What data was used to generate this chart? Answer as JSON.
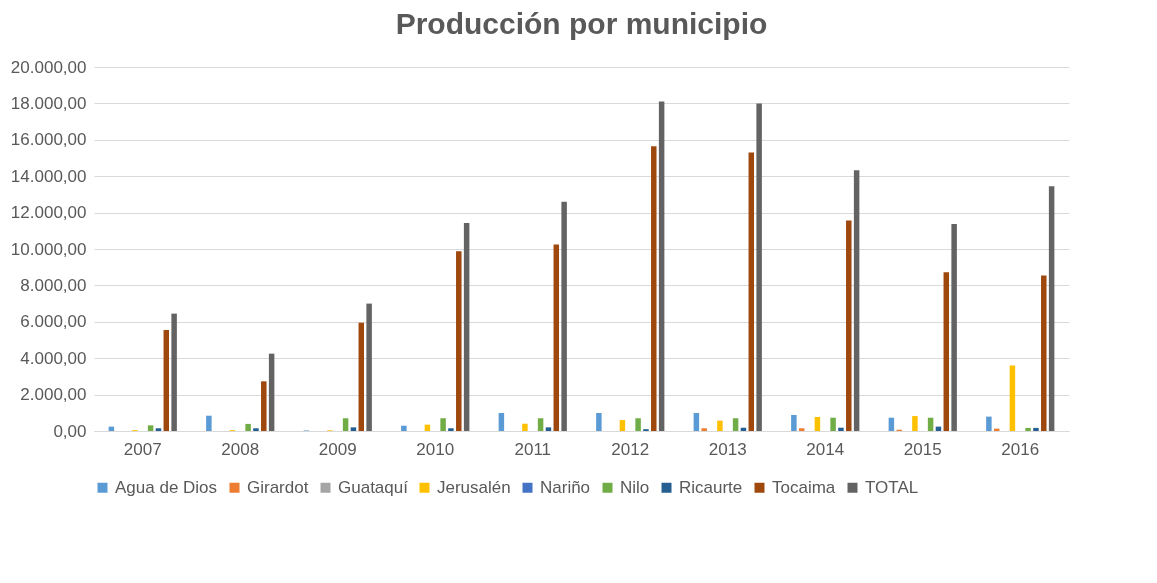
{
  "chart_data": {
    "type": "bar",
    "title": "Producción por municipio",
    "categories": [
      "2007",
      "2008",
      "2009",
      "2010",
      "2011",
      "2012",
      "2013",
      "2014",
      "2015",
      "2016"
    ],
    "series": [
      {
        "name": "Agua de Dios",
        "color": "#5b9bd5",
        "values": [
          240,
          840,
          30,
          290,
          990,
          990,
          990,
          880,
          730,
          790
        ]
      },
      {
        "name": "Girardot",
        "color": "#ed7d31",
        "values": [
          0,
          0,
          0,
          0,
          0,
          0,
          150,
          150,
          70,
          130
        ]
      },
      {
        "name": "Guataquí",
        "color": "#a5a5a5",
        "values": [
          null,
          null,
          null,
          0,
          0,
          0,
          0,
          0,
          0,
          0
        ]
      },
      {
        "name": "Jerusalén",
        "color": "#ffc000",
        "values": [
          50,
          50,
          40,
          350,
          400,
          600,
          570,
          770,
          820,
          3600
        ]
      },
      {
        "name": "Nariño",
        "color": "#4472c4",
        "values": [
          0,
          0,
          0,
          0,
          0,
          0,
          0,
          0,
          0,
          0
        ]
      },
      {
        "name": "Nilo",
        "color": "#70ad47",
        "values": [
          310,
          390,
          700,
          700,
          700,
          700,
          700,
          730,
          730,
          170
        ]
      },
      {
        "name": "Ricaurte",
        "color": "#255e91",
        "values": [
          150,
          150,
          200,
          150,
          200,
          100,
          180,
          180,
          240,
          170
        ]
      },
      {
        "name": "Tocaima",
        "color": "#9e480e",
        "values": [
          5550,
          2730,
          5950,
          9870,
          10250,
          15650,
          15300,
          11570,
          8720,
          8550
        ]
      },
      {
        "name": "TOTAL",
        "color": "#636363",
        "values": [
          6450,
          4250,
          7000,
          11430,
          12600,
          18100,
          18000,
          14330,
          11380,
          13450
        ]
      }
    ],
    "ylim": [
      0,
      20000
    ],
    "yticks": [
      {
        "value": 0,
        "label": "0,00"
      },
      {
        "value": 2000,
        "label": "2.000,00"
      },
      {
        "value": 4000,
        "label": "4.000,00"
      },
      {
        "value": 6000,
        "label": "6.000,00"
      },
      {
        "value": 8000,
        "label": "8.000,00"
      },
      {
        "value": 10000,
        "label": "10.000,00"
      },
      {
        "value": 12000,
        "label": "12.000,00"
      },
      {
        "value": 14000,
        "label": "14.000,00"
      },
      {
        "value": 16000,
        "label": "16.000,00"
      },
      {
        "value": 18000,
        "label": "18.000,00"
      },
      {
        "value": 20000,
        "label": "20.000,00"
      }
    ],
    "grid": "y",
    "legend": "bottom"
  }
}
